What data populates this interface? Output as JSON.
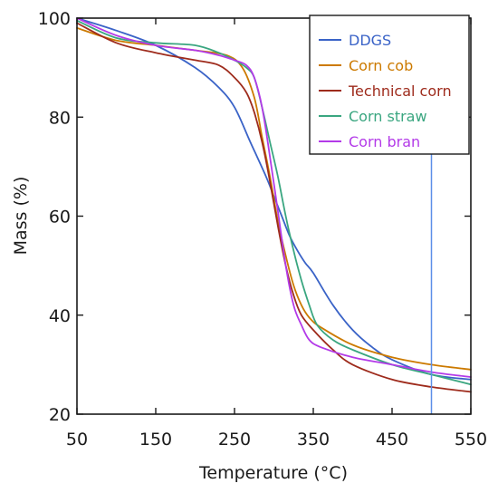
{
  "chart_data": {
    "type": "line",
    "xlabel": "Temperature (°C)",
    "ylabel": "Mass (%)",
    "xlim": [
      50,
      550
    ],
    "ylim": [
      20,
      100
    ],
    "xticks": [
      50,
      150,
      250,
      350,
      450,
      550
    ],
    "yticks": [
      20,
      40,
      60,
      80,
      100
    ],
    "legend_position": "top-right",
    "grid": false,
    "reference_line": {
      "x": 500,
      "color": "#5b8ee8"
    },
    "series": [
      {
        "name": "DDGS",
        "color": "#3a63c7",
        "x": [
          50,
          100,
          150,
          200,
          230,
          250,
          270,
          290,
          300,
          310,
          320,
          330,
          340,
          350,
          375,
          400,
          425,
          450,
          500,
          550
        ],
        "y": [
          100,
          97.5,
          94.5,
          90,
          86,
          82,
          75,
          68,
          64,
          60,
          56,
          53,
          50.5,
          48.5,
          42,
          37,
          33.5,
          31,
          28,
          27
        ]
      },
      {
        "name": "Corn cob",
        "color": "#cc7a00",
        "x": [
          50,
          100,
          150,
          200,
          240,
          260,
          275,
          285,
          295,
          305,
          315,
          325,
          335,
          345,
          360,
          400,
          450,
          500,
          550
        ],
        "y": [
          98,
          95.5,
          94.5,
          93.5,
          92.5,
          90,
          84,
          76,
          68,
          59,
          52,
          46,
          42,
          39.5,
          37.5,
          34,
          31.5,
          30,
          29
        ]
      },
      {
        "name": "Technical corn",
        "color": "#9e2b1c",
        "x": [
          50,
          100,
          150,
          200,
          230,
          250,
          265,
          275,
          285,
          295,
          305,
          315,
          325,
          335,
          350,
          375,
          400,
          450,
          500,
          550
        ],
        "y": [
          99,
          95,
          93,
          91.5,
          90.5,
          88,
          85,
          81,
          75,
          67,
          58,
          50,
          44,
          40,
          37,
          33,
          30,
          27,
          25.5,
          24.5
        ]
      },
      {
        "name": "Corn straw",
        "color": "#3aa680",
        "x": [
          50,
          100,
          150,
          200,
          230,
          250,
          265,
          275,
          285,
          295,
          305,
          315,
          325,
          335,
          345,
          355,
          375,
          400,
          450,
          500,
          550
        ],
        "y": [
          99.5,
          96,
          95,
          94.5,
          93,
          91.5,
          90,
          88,
          82,
          75,
          68,
          60,
          53,
          47,
          42,
          38,
          35,
          33,
          30,
          28,
          26
        ]
      },
      {
        "name": "Corn bran",
        "color": "#b33ae8",
        "x": [
          50,
          100,
          150,
          200,
          230,
          250,
          265,
          275,
          285,
          295,
          305,
          315,
          325,
          335,
          345,
          360,
          400,
          450,
          500,
          550
        ],
        "y": [
          100,
          96.5,
          94.5,
          93.5,
          92.5,
          91.5,
          90.5,
          88,
          82,
          72,
          61,
          50,
          42,
          38,
          35,
          33.5,
          31.5,
          30,
          28.5,
          27.5
        ]
      }
    ]
  }
}
